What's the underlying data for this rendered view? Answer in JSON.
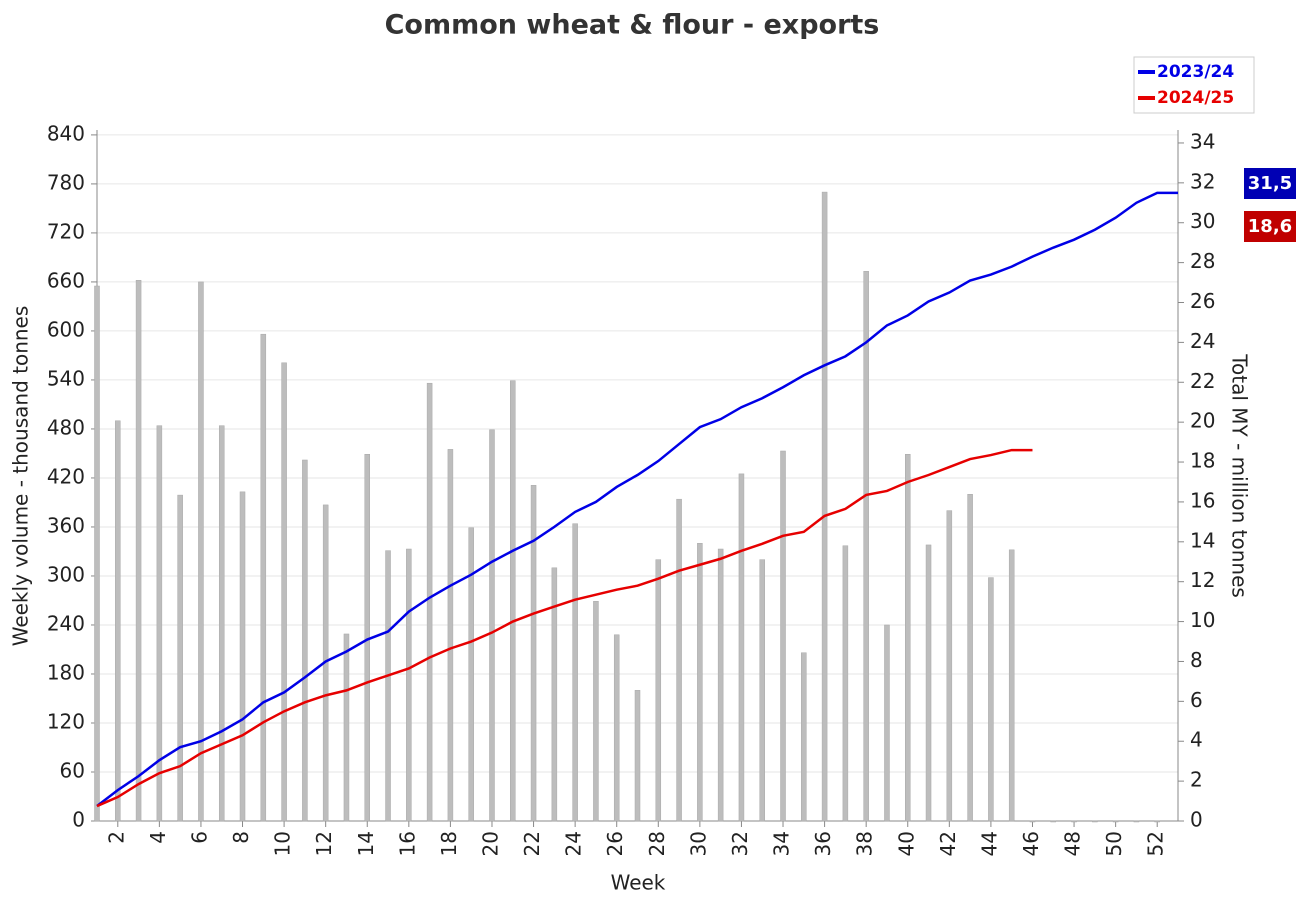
{
  "chart_data": {
    "type": "combo",
    "title": "Common wheat & flour - exports",
    "xlabel": "Week",
    "ylabel": "Weekly volume - thousand tonnes",
    "y2label": "Total MY - million tonnes",
    "x": [
      1,
      2,
      3,
      4,
      5,
      6,
      7,
      8,
      9,
      10,
      11,
      12,
      13,
      14,
      15,
      16,
      17,
      18,
      19,
      20,
      21,
      22,
      23,
      24,
      25,
      26,
      27,
      28,
      29,
      30,
      31,
      32,
      33,
      34,
      35,
      36,
      37,
      38,
      39,
      40,
      41,
      42,
      43,
      44,
      45,
      46,
      47,
      48,
      49,
      50,
      51,
      52,
      53
    ],
    "bars": {
      "type": "bar",
      "color": "#bdbdbd",
      "values": [
        655,
        490,
        662,
        484,
        399,
        660,
        484,
        403,
        596,
        561,
        442,
        387,
        229,
        449,
        331,
        333,
        536,
        455,
        359,
        479,
        539,
        411,
        310,
        364,
        269,
        228,
        160,
        320,
        394,
        340,
        333,
        425,
        320,
        453,
        206,
        770,
        337,
        673,
        240,
        449,
        338,
        380,
        400,
        298,
        332,
        0,
        0,
        0,
        0,
        0,
        0,
        0,
        null
      ]
    },
    "series": [
      {
        "type": "line",
        "name": "2023/24",
        "color": "#0000e6",
        "axis": "y2",
        "end_label": "31,5",
        "end_color": "#0000b4",
        "values": [
          0.75,
          1.55,
          2.25,
          3.05,
          3.7,
          4.0,
          4.5,
          5.1,
          5.95,
          6.45,
          7.2,
          8.0,
          8.5,
          9.1,
          9.5,
          10.5,
          11.2,
          11.8,
          12.35,
          13.0,
          13.55,
          14.05,
          14.75,
          15.5,
          16.0,
          16.75,
          17.35,
          18.05,
          18.9,
          19.75,
          20.15,
          20.75,
          21.2,
          21.75,
          22.35,
          22.85,
          23.3,
          24.0,
          24.85,
          25.35,
          26.05,
          26.5,
          27.1,
          27.4,
          27.8,
          28.3,
          28.75,
          29.15,
          29.65,
          30.25,
          31.0,
          31.5,
          31.5
        ]
      },
      {
        "type": "line",
        "name": "2024/25",
        "color": "#e60000",
        "axis": "y2",
        "end_label": "18,6",
        "end_color": "#c00000",
        "values": [
          0.75,
          1.2,
          1.85,
          2.4,
          2.75,
          3.4,
          3.85,
          4.3,
          4.95,
          5.5,
          5.95,
          6.3,
          6.55,
          6.95,
          7.3,
          7.65,
          8.2,
          8.65,
          9.0,
          9.45,
          10.0,
          10.4,
          10.75,
          11.1,
          11.35,
          11.6,
          11.8,
          12.15,
          12.55,
          12.85,
          13.15,
          13.55,
          13.9,
          14.3,
          14.5,
          15.3,
          15.65,
          16.35,
          16.55,
          17.0,
          17.35,
          17.75,
          18.15,
          18.35,
          18.6,
          18.6,
          null,
          null,
          null,
          null,
          null,
          null,
          null
        ]
      }
    ],
    "xlim": [
      1,
      53
    ],
    "xticks": [
      2,
      4,
      6,
      8,
      10,
      12,
      14,
      16,
      18,
      20,
      22,
      24,
      26,
      28,
      30,
      32,
      34,
      36,
      38,
      40,
      42,
      44,
      46,
      48,
      50,
      52
    ],
    "ylim": [
      0,
      846
    ],
    "yticks": [
      0,
      60,
      120,
      180,
      240,
      300,
      360,
      420,
      480,
      540,
      600,
      660,
      720,
      780,
      840
    ],
    "y2lim": [
      0,
      34.65
    ],
    "y2ticks": [
      0,
      2,
      4,
      6,
      8,
      10,
      12,
      14,
      16,
      18,
      20,
      22,
      24,
      26,
      28,
      30,
      32,
      34
    ],
    "grid": true,
    "legend": "top-right"
  }
}
